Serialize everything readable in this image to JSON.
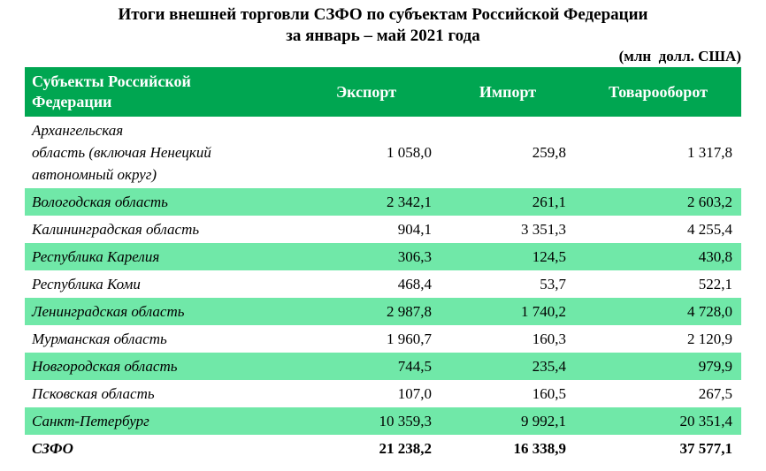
{
  "title": {
    "line1": "Итоги внешней торговли СЗФО по субъектам Российской Федерации",
    "line2": "за январь – май 2021 года",
    "units": "(млн  долл. США)"
  },
  "colors": {
    "header_green": "#00A651",
    "row_mint": "#70E8A8",
    "header_text": "#FFFFFF",
    "body_text": "#000000",
    "background": "#FFFFFF"
  },
  "table": {
    "headers": {
      "region": "Субъекты  Российской\nФедерации",
      "export": "Экспорт",
      "import": "Импорт",
      "turnover": "Товарооборот"
    },
    "rows": [
      {
        "region": "Архангельская\nобласть (включая Ненецкий\nавтономный округ)",
        "export": "1 058,0",
        "import": "259,8",
        "turnover": "1 317,8"
      },
      {
        "region": "Вологодская область",
        "export": "2 342,1",
        "import": "261,1",
        "turnover": "2 603,2"
      },
      {
        "region": "Калининградская область",
        "export": "904,1",
        "import": "3 351,3",
        "turnover": "4 255,4"
      },
      {
        "region": "Республика Карелия",
        "export": "306,3",
        "import": "124,5",
        "turnover": "430,8"
      },
      {
        "region": "Республика Коми",
        "export": "468,4",
        "import": "53,7",
        "turnover": "522,1"
      },
      {
        "region": "Ленинградская область",
        "export": "2 987,8",
        "import": "1 740,2",
        "turnover": "4 728,0"
      },
      {
        "region": "Мурманская область",
        "export": "1 960,7",
        "import": "160,3",
        "turnover": "2 120,9"
      },
      {
        "region": "Новгородская область",
        "export": "744,5",
        "import": "235,4",
        "turnover": "979,9"
      },
      {
        "region": "Псковская область",
        "export": "107,0",
        "import": "160,5",
        "turnover": "267,5"
      },
      {
        "region": "Санкт-Петербург",
        "export": "10 359,3",
        "import": "9 992,1",
        "turnover": "20 351,4"
      },
      {
        "region": "СЗФО",
        "export": "21 238,2",
        "import": "16 338,9",
        "turnover": "37 577,1"
      }
    ]
  },
  "chart_data": {
    "type": "table",
    "title": "Итоги внешней торговли СЗФО по субъектам Российской Федерации за январь – май 2021 года",
    "units": "млн долл. США",
    "columns": [
      "Субъекты Российской Федерации",
      "Экспорт",
      "Импорт",
      "Товарооборот"
    ],
    "categories": [
      "Архангельская область (включая Ненецкий автономный округ)",
      "Вологодская область",
      "Калининградская область",
      "Республика Карелия",
      "Республика Коми",
      "Ленинградская область",
      "Мурманская область",
      "Новгородская область",
      "Псковская область",
      "Санкт-Петербург",
      "СЗФО"
    ],
    "series": [
      {
        "name": "Экспорт",
        "values": [
          1058.0,
          2342.1,
          904.1,
          306.3,
          468.4,
          2987.8,
          1960.7,
          744.5,
          107.0,
          10359.3,
          21238.2
        ]
      },
      {
        "name": "Импорт",
        "values": [
          259.8,
          261.1,
          3351.3,
          124.5,
          53.7,
          1740.2,
          160.3,
          235.4,
          160.5,
          9992.1,
          16338.9
        ]
      },
      {
        "name": "Товарооборот",
        "values": [
          1317.8,
          2603.2,
          4255.4,
          430.8,
          522.1,
          4728.0,
          2120.9,
          979.9,
          267.5,
          20351.4,
          37577.1
        ]
      }
    ],
    "notes": "Последняя строка СЗФО — итог по федеральному округу; строки через одну выделены мятно-зелёной заливкой"
  }
}
